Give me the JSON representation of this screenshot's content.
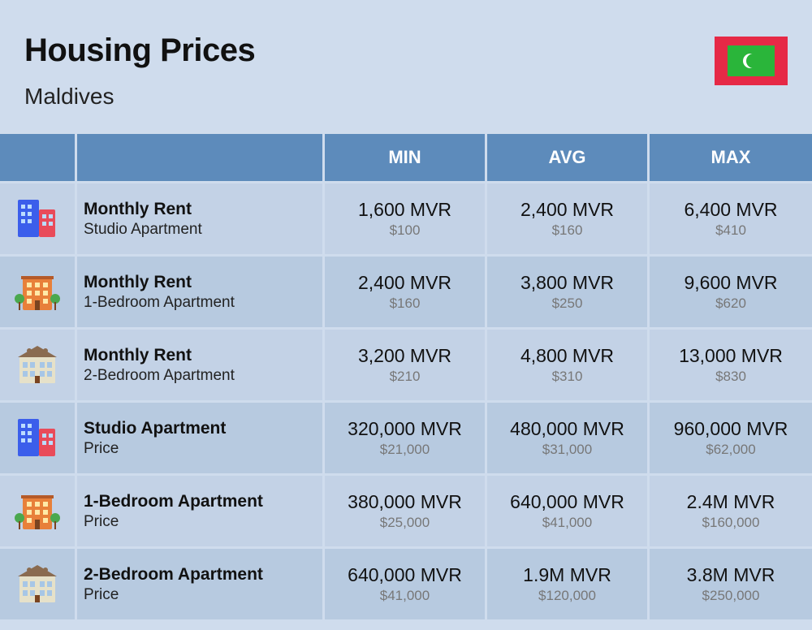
{
  "header": {
    "title": "Housing Prices",
    "country": "Maldives"
  },
  "flag": {
    "outer_color": "#e62946",
    "inner_color": "#2ab53a",
    "crescent_color": "#ffffff"
  },
  "columns": {
    "min": "MIN",
    "avg": "AVG",
    "max": "MAX"
  },
  "colors": {
    "page_bg": "#cfdced",
    "header_bg": "#5d8bbb",
    "header_text": "#ffffff",
    "row_even": "#b7cae0",
    "row_odd": "#c3d2e6",
    "text_primary": "#111111",
    "text_secondary": "#777777"
  },
  "rows": [
    {
      "icon": "studio",
      "title": "Monthly Rent",
      "subtitle": "Studio Apartment",
      "min_main": "1,600 MVR",
      "min_sub": "$100",
      "avg_main": "2,400 MVR",
      "avg_sub": "$160",
      "max_main": "6,400 MVR",
      "max_sub": "$410"
    },
    {
      "icon": "onebed",
      "title": "Monthly Rent",
      "subtitle": "1-Bedroom Apartment",
      "min_main": "2,400 MVR",
      "min_sub": "$160",
      "avg_main": "3,800 MVR",
      "avg_sub": "$250",
      "max_main": "9,600 MVR",
      "max_sub": "$620"
    },
    {
      "icon": "twobed",
      "title": "Monthly Rent",
      "subtitle": "2-Bedroom Apartment",
      "min_main": "3,200 MVR",
      "min_sub": "$210",
      "avg_main": "4,800 MVR",
      "avg_sub": "$310",
      "max_main": "13,000 MVR",
      "max_sub": "$830"
    },
    {
      "icon": "studio",
      "title": "Studio Apartment",
      "subtitle": "Price",
      "min_main": "320,000 MVR",
      "min_sub": "$21,000",
      "avg_main": "480,000 MVR",
      "avg_sub": "$31,000",
      "max_main": "960,000 MVR",
      "max_sub": "$62,000"
    },
    {
      "icon": "onebed",
      "title": "1-Bedroom Apartment",
      "subtitle": "Price",
      "min_main": "380,000 MVR",
      "min_sub": "$25,000",
      "avg_main": "640,000 MVR",
      "avg_sub": "$41,000",
      "max_main": "2.4M MVR",
      "max_sub": "$160,000"
    },
    {
      "icon": "twobed",
      "title": "2-Bedroom Apartment",
      "subtitle": "Price",
      "min_main": "640,000 MVR",
      "min_sub": "$41,000",
      "avg_main": "1.9M MVR",
      "avg_sub": "$120,000",
      "max_main": "3.8M MVR",
      "max_sub": "$250,000"
    }
  ],
  "icons": {
    "studio": {
      "type": "two-towers",
      "colors": {
        "left": "#3b5eeb",
        "right": "#e94b5a",
        "windows": "#bcdcff"
      }
    },
    "onebed": {
      "type": "mid-building",
      "colors": {
        "body": "#e8803a",
        "windows": "#ffe9a8",
        "tree": "#4aa84e"
      }
    },
    "twobed": {
      "type": "house",
      "colors": {
        "body": "#e6e1c9",
        "roof": "#8a6b50",
        "windows": "#a7c6e6"
      }
    }
  }
}
